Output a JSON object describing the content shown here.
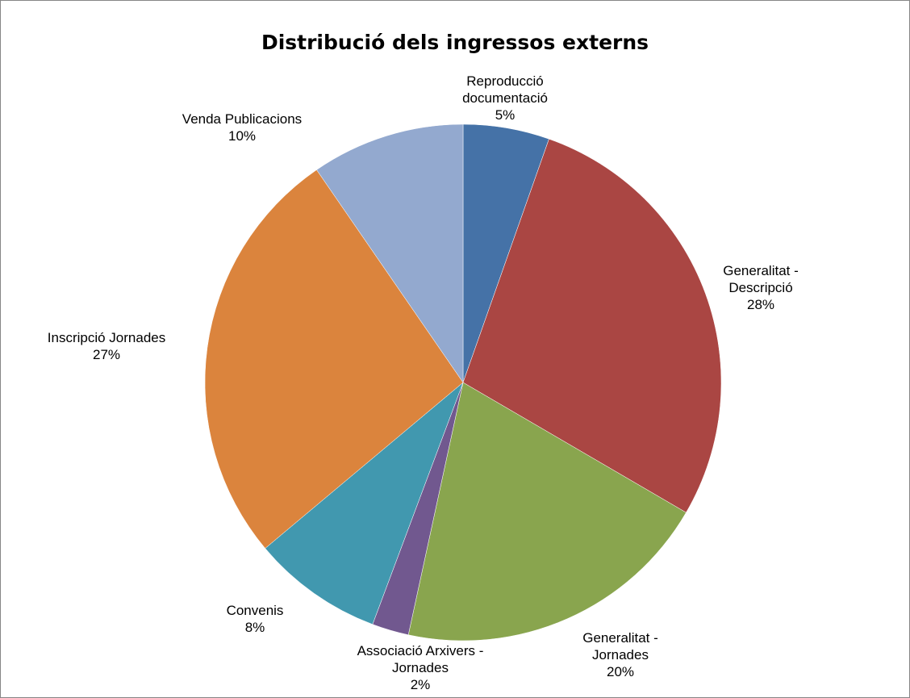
{
  "chart_data": {
    "type": "pie",
    "title": "Distribució dels ingressos externs",
    "legend": "none",
    "slices": [
      {
        "name": "Reproducció documentació",
        "label_lines": [
          "Reproducció",
          "documentació"
        ],
        "pct_label": "5%",
        "value": 5.4,
        "color": "#4572A7"
      },
      {
        "name": "Generalitat - Descripció",
        "label_lines": [
          "Generalitat -",
          "Descripció"
        ],
        "pct_label": "28%",
        "value": 28.0,
        "color": "#AA4643"
      },
      {
        "name": "Generalitat - Jornades",
        "label_lines": [
          "Generalitat -",
          "Jornades"
        ],
        "pct_label": "20%",
        "value": 20.0,
        "color": "#89A54E"
      },
      {
        "name": "Associació Arxivers - Jornades",
        "label_lines": [
          "Associació Arxivers -",
          "Jornades"
        ],
        "pct_label": "2%",
        "value": 2.3,
        "color": "#71588F"
      },
      {
        "name": "Convenis",
        "label_lines": [
          "Convenis"
        ],
        "pct_label": "8%",
        "value": 8.2,
        "color": "#4198AF"
      },
      {
        "name": "Inscripció Jornades",
        "label_lines": [
          "Inscripció Jornades"
        ],
        "pct_label": "27%",
        "value": 26.5,
        "color": "#DB843D"
      },
      {
        "name": "Venda Publicacions",
        "label_lines": [
          "Venda Publicacions"
        ],
        "pct_label": "10%",
        "value": 9.6,
        "color": "#93A9CF"
      }
    ]
  }
}
